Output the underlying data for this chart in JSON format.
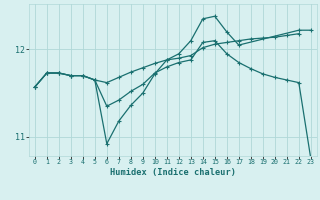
{
  "xlabel": "Humidex (Indice chaleur)",
  "bg_color": "#d8f0f0",
  "grid_color": "#b0d8d8",
  "line_color": "#1a7070",
  "xlim": [
    -0.5,
    23.5
  ],
  "ylim": [
    10.78,
    12.52
  ],
  "yticks": [
    11,
    12
  ],
  "xticks": [
    0,
    1,
    2,
    3,
    4,
    5,
    6,
    7,
    8,
    9,
    10,
    11,
    12,
    13,
    14,
    15,
    16,
    17,
    18,
    19,
    20,
    21,
    22,
    23
  ],
  "line1_x": [
    0,
    1,
    2,
    3,
    4,
    5,
    6,
    7,
    8,
    9,
    10,
    11,
    12,
    13,
    14,
    15,
    16,
    17,
    18,
    19,
    20,
    21,
    22
  ],
  "line1_y": [
    11.57,
    11.73,
    11.73,
    11.7,
    11.7,
    11.65,
    11.62,
    11.68,
    11.74,
    11.79,
    11.84,
    11.88,
    11.9,
    11.93,
    12.02,
    12.06,
    12.08,
    12.1,
    12.12,
    12.13,
    12.14,
    12.16,
    12.18
  ],
  "line2_x": [
    0,
    1,
    2,
    3,
    4,
    5,
    6,
    7,
    8,
    9,
    10,
    11,
    12,
    13,
    14,
    15,
    16,
    17,
    18,
    19,
    20,
    21,
    22,
    23
  ],
  "line2_y": [
    11.57,
    11.73,
    11.73,
    11.7,
    11.7,
    11.65,
    11.35,
    11.42,
    11.52,
    11.6,
    11.73,
    11.8,
    11.85,
    11.88,
    12.08,
    12.1,
    11.95,
    11.85,
    11.78,
    11.72,
    11.68,
    11.65,
    11.62,
    10.75
  ],
  "line3_x": [
    0,
    1,
    2,
    3,
    4,
    5,
    6,
    7,
    8,
    9,
    10,
    11,
    12,
    13,
    14,
    15,
    16,
    17,
    22,
    23
  ],
  "line3_y": [
    11.57,
    11.73,
    11.73,
    11.7,
    11.7,
    11.65,
    10.92,
    11.18,
    11.36,
    11.5,
    11.72,
    11.88,
    11.95,
    12.1,
    12.35,
    12.38,
    12.2,
    12.05,
    12.22,
    12.22
  ],
  "marker_size": 3.0,
  "line_width": 0.9
}
